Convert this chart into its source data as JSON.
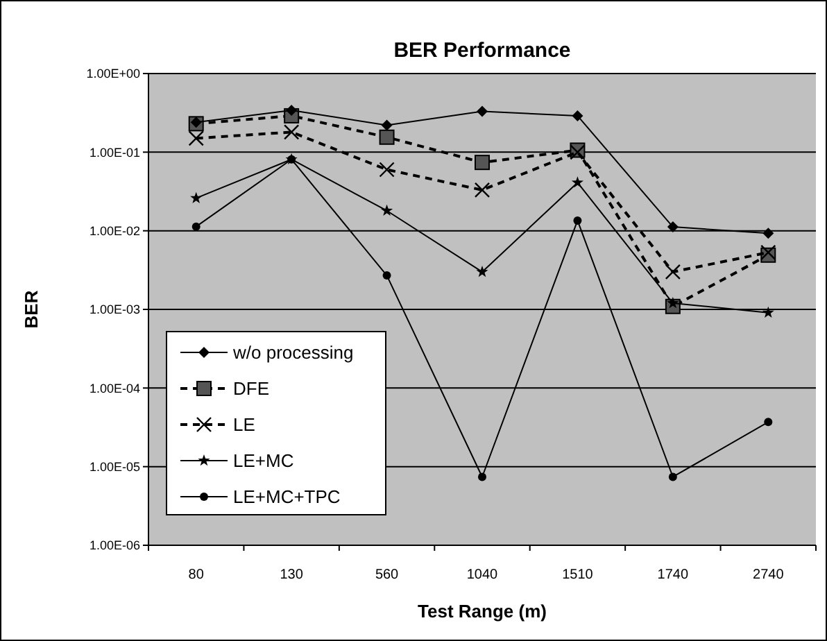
{
  "chart_data": {
    "type": "line",
    "title": "BER Performance",
    "xlabel": "Test Range (m)",
    "ylabel": "BER",
    "categories": [
      "80",
      "130",
      "560",
      "1040",
      "1510",
      "1740",
      "2740"
    ],
    "log": true,
    "ylim": [
      1e-06,
      1
    ],
    "yticks": [
      {
        "value": 1e-06,
        "label": "1.00E-06"
      },
      {
        "value": 1e-05,
        "label": "1.00E-05"
      },
      {
        "value": 0.0001,
        "label": "1.00E-04"
      },
      {
        "value": 0.001,
        "label": "1.00E-03"
      },
      {
        "value": 0.01,
        "label": "1.00E-02"
      },
      {
        "value": 0.1,
        "label": "1.00E-01"
      },
      {
        "value": 1,
        "label": "1.00E+00"
      }
    ],
    "grid": "y",
    "legend": "bottom left",
    "series": [
      {
        "name": "w/o processing",
        "color": "#000000",
        "marker": "diamond",
        "line_style": "solid",
        "values": [
          0.24,
          0.34,
          0.22,
          0.33,
          0.29,
          0.0112,
          0.0093
        ]
      },
      {
        "name": "DFE",
        "color": "#000000",
        "marker": "square",
        "line_style": "dashed",
        "values": [
          0.23,
          0.29,
          0.155,
          0.074,
          0.106,
          0.00109,
          0.0049
        ]
      },
      {
        "name": "LE",
        "color": "#000000",
        "marker": "cross",
        "line_style": "dashed",
        "values": [
          0.15,
          0.18,
          0.06,
          0.033,
          0.1,
          0.003,
          0.0053
        ]
      },
      {
        "name": "LE+MC",
        "color": "#000000",
        "marker": "star",
        "line_style": "solid",
        "values": [
          0.026,
          0.081,
          0.018,
          0.003,
          0.041,
          0.0012,
          0.00091
        ]
      },
      {
        "name": "LE+MC+TPC",
        "color": "#000000",
        "marker": "circle",
        "line_style": "solid",
        "values": [
          0.0113,
          0.081,
          0.0027,
          7.4e-06,
          0.0135,
          7.4e-06,
          3.7e-05
        ]
      }
    ]
  }
}
